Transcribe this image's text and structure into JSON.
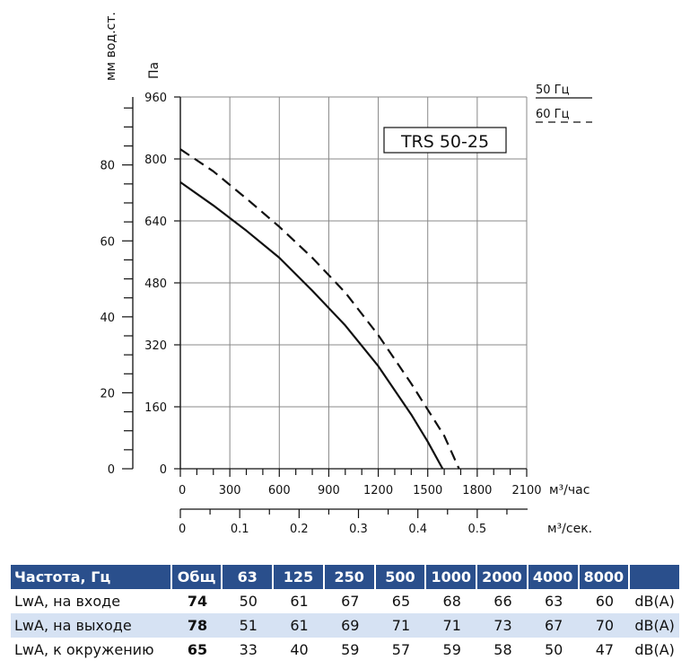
{
  "chart_data": {
    "type": "line",
    "model_label": "TRS 50-25",
    "y_left_label": "мм вод.ст.",
    "y_left_ticks": [
      "0",
      "20",
      "40",
      "60",
      "80"
    ],
    "y_right_label": "Па",
    "y_right_ticks": [
      "0",
      "160",
      "320",
      "480",
      "640",
      "800",
      "960"
    ],
    "ylim_pa": [
      0,
      960
    ],
    "x_label": "м³/час",
    "x_ticks": [
      "0",
      "300",
      "600",
      "900",
      "1200",
      "1500",
      "1800",
      "2100"
    ],
    "xlim": [
      0,
      2100
    ],
    "x2_label": "м³/сек.",
    "x2_ticks": [
      "0",
      "0.1",
      "0.2",
      "0.3",
      "0.4",
      "0.5"
    ],
    "legend": [
      {
        "name": "50 Гц",
        "style": "solid"
      },
      {
        "name": "60 Гц",
        "style": "dashed"
      }
    ],
    "series": [
      {
        "name": "50 Гц",
        "style": "solid",
        "x": [
          0,
          200,
          400,
          600,
          800,
          1000,
          1200,
          1400,
          1500,
          1590
        ],
        "y": [
          740,
          680,
          615,
          545,
          460,
          370,
          265,
          140,
          70,
          0
        ]
      },
      {
        "name": "60 Гц",
        "style": "dashed",
        "x": [
          0,
          200,
          400,
          600,
          800,
          1000,
          1200,
          1400,
          1600,
          1690
        ],
        "y": [
          825,
          768,
          698,
          625,
          545,
          455,
          345,
          220,
          85,
          0
        ]
      }
    ]
  },
  "table": {
    "headers": [
      "Частота, Гц",
      "Общ",
      "63",
      "125",
      "250",
      "500",
      "1000",
      "2000",
      "4000",
      "8000",
      ""
    ],
    "rows": [
      {
        "label": "LwA, на входе",
        "total": "74",
        "values": [
          "50",
          "61",
          "67",
          "65",
          "68",
          "66",
          "63",
          "60"
        ],
        "unit": "dB(A)"
      },
      {
        "label": "LwA, на выходе",
        "total": "78",
        "values": [
          "51",
          "61",
          "69",
          "71",
          "71",
          "73",
          "67",
          "70"
        ],
        "unit": "dB(A)"
      },
      {
        "label": "LwA, к окружению",
        "total": "65",
        "values": [
          "33",
          "40",
          "59",
          "57",
          "59",
          "58",
          "50",
          "47"
        ],
        "unit": "dB(A)"
      }
    ]
  }
}
